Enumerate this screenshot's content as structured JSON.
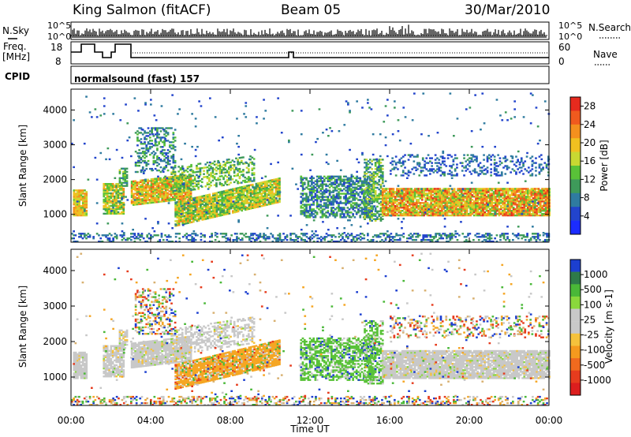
{
  "header": {
    "station": "King Salmon (fitACF)",
    "beam": "Beam 05",
    "date": "30/Mar/2010"
  },
  "strips": {
    "nsky_label": "N.Sky",
    "nsearch_label": "N.Search",
    "scale_top": "10^5",
    "scale_bottom": "10^0",
    "freq_label_1": "Freq.",
    "freq_label_2": "[MHz]",
    "freq_ticks": [
      "18",
      "8"
    ],
    "nave_label": "Nave",
    "nave_ticks": [
      "60",
      "0"
    ],
    "cpid_label": "CPID",
    "cpid_value": "normalsound (fast) 157"
  },
  "chart_data": [
    {
      "type": "heatmap",
      "title": "",
      "xlabel": "Time UT",
      "ylabel": "Slant Range [km]",
      "x_ticks": [
        "00:00",
        "04:00",
        "08:00",
        "12:00",
        "16:00",
        "20:00",
        "00:00"
      ],
      "y_ticks": [
        1000,
        2000,
        3000,
        4000
      ],
      "ylim": [
        200,
        4600
      ],
      "xlim_hours": [
        0,
        24
      ],
      "colorbar": {
        "label": "Power [dB]",
        "ticks": [
          "4",
          "8",
          "12",
          "16",
          "20",
          "24",
          "28"
        ],
        "colors": [
          "#1b2cff",
          "#2244cc",
          "#2f7ba0",
          "#3e9a5a",
          "#59c238",
          "#c8d832",
          "#f0c020",
          "#f4901e",
          "#f05a1e",
          "#e62a1e"
        ]
      }
    },
    {
      "type": "heatmap",
      "title": "",
      "xlabel": "Time UT",
      "ylabel": "Slant Range [km]",
      "x_ticks": [
        "00:00",
        "04:00",
        "08:00",
        "12:00",
        "16:00",
        "20:00",
        "00:00"
      ],
      "y_ticks": [
        1000,
        2000,
        3000,
        4000
      ],
      "ylim": [
        200,
        4600
      ],
      "xlim_hours": [
        0,
        24
      ],
      "colorbar": {
        "label": "Velocity [m s-1]",
        "ticks": [
          "1000",
          "500",
          "100",
          "25",
          "-25",
          "-100",
          "-500",
          "-1000"
        ],
        "colors": [
          "#1c3fd0",
          "#2e7a4a",
          "#4ab838",
          "#8ad83c",
          "#c8c8c8",
          "#c8c8c8",
          "#f5c23c",
          "#f59a1e",
          "#f06a1e",
          "#e63c1e",
          "#dc1e1e"
        ]
      }
    }
  ],
  "time_axis_label": "Time UT"
}
